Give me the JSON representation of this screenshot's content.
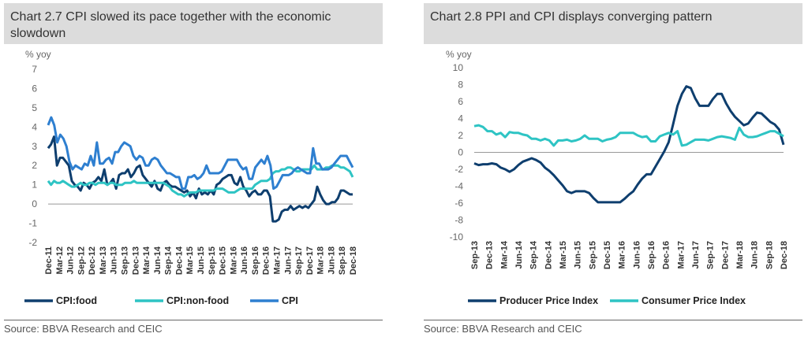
{
  "left": {
    "title": "Chart 2.7 CPI slowed its pace together with the economic slowdown",
    "source": "Source: BBVA Research and CEIC"
  },
  "right": {
    "title": "Chart 2.8 PPI and CPI displays converging pattern",
    "source": "Source: BBVA Research and CEIC"
  },
  "chart_data": [
    {
      "type": "line",
      "ylabel": "% yoy",
      "ylim": [
        -2,
        7
      ],
      "yticks": [
        -2,
        -1,
        0,
        1,
        2,
        3,
        4,
        5,
        6,
        7
      ],
      "grid": false,
      "legend_position": "bottom",
      "x_tick_labels": [
        "Dec-11",
        "Mar-12",
        "Jun-12",
        "Sep-12",
        "Dec-12",
        "Mar-13",
        "Jun-13",
        "Sep-13",
        "Dec-13",
        "Mar-14",
        "Jun-14",
        "Sep-14",
        "Dec-14",
        "Mar-15",
        "Jun-15",
        "Sep-15",
        "Dec-15",
        "Mar-16",
        "Jun-16",
        "Sep-16",
        "Dec-16",
        "Mar-17",
        "Jun-17",
        "Sep-17",
        "Dec-17",
        "Mar-18",
        "Jun-18",
        "Sep-18",
        "Dec-18"
      ],
      "series": [
        {
          "name": "CPI:food",
          "color": "#0e3e6e",
          "values": [
            2.9,
            3.1,
            3.5,
            2.0,
            2.4,
            2.4,
            2.2,
            2.0,
            1.2,
            1.0,
            0.9,
            0.7,
            1.1,
            1.0,
            0.8,
            1.1,
            1.2,
            1.4,
            1.2,
            1.8,
            1.0,
            1.1,
            1.3,
            0.8,
            1.5,
            1.6,
            1.6,
            1.8,
            1.4,
            1.6,
            1.9,
            2.0,
            1.5,
            1.3,
            1.1,
            0.9,
            1.2,
            0.8,
            0.7,
            1.1,
            1.2,
            1.0,
            0.9,
            0.9,
            0.8,
            0.7,
            0.6,
            0.7,
            0.4,
            0.6,
            0.3,
            0.8,
            0.5,
            0.6,
            0.5,
            0.7,
            0.5,
            1.0,
            1.1,
            1.3,
            1.4,
            1.5,
            1.5,
            1.1,
            1.0,
            1.4,
            0.9,
            0.7,
            0.4,
            0.6,
            0.7,
            0.5,
            0.5,
            0.7,
            0.7,
            0.4,
            -0.9,
            -0.9,
            -0.8,
            -0.4,
            -0.3,
            -0.3,
            -0.1,
            -0.3,
            -0.2,
            -0.1,
            -0.2,
            -0.1,
            -0.2,
            0.0,
            0.2,
            0.9,
            0.5,
            0.2,
            0.0,
            0.0,
            0.1,
            0.1,
            0.3,
            0.7,
            0.7,
            0.6,
            0.5,
            0.5
          ]
        },
        {
          "name": "CPI:non-food",
          "color": "#2ec4c4",
          "values": [
            1.2,
            1.0,
            1.2,
            1.1,
            1.1,
            1.2,
            1.1,
            1.0,
            0.9,
            0.9,
            1.0,
            1.1,
            1.0,
            1.0,
            1.1,
            1.1,
            1.0,
            1.1,
            1.1,
            1.1,
            1.0,
            1.1,
            1.1,
            1.0,
            1.0,
            1.0,
            1.1,
            1.1,
            1.1,
            1.2,
            1.1,
            1.1,
            1.1,
            1.1,
            1.1,
            1.1,
            1.1,
            1.1,
            1.1,
            1.1,
            1.0,
            0.9,
            0.7,
            0.6,
            0.5,
            0.5,
            0.4,
            0.5,
            0.6,
            0.6,
            0.6,
            0.7,
            0.7,
            0.7,
            0.7,
            0.7,
            0.7,
            0.8,
            0.8,
            0.8,
            0.7,
            0.6,
            0.6,
            0.6,
            0.7,
            0.8,
            0.8,
            0.8,
            0.8,
            0.8,
            1.0,
            1.1,
            1.2,
            1.2,
            1.2,
            1.3,
            1.6,
            1.7,
            1.7,
            1.8,
            1.8,
            1.9,
            1.9,
            1.8,
            1.7,
            1.7,
            1.8,
            1.8,
            1.8,
            1.8,
            2.0,
            1.8,
            1.8,
            1.8,
            1.9,
            1.9,
            2.0,
            2.0,
            2.0,
            1.9,
            1.9,
            1.8,
            1.7,
            1.4
          ]
        },
        {
          "name": "CPI",
          "color": "#2e7fd0",
          "values": [
            4.1,
            4.5,
            4.1,
            3.2,
            3.6,
            3.4,
            3.0,
            2.2,
            1.8,
            2.0,
            1.9,
            1.8,
            2.1,
            2.0,
            2.5,
            2.0,
            3.2,
            2.1,
            2.1,
            2.3,
            2.4,
            2.1,
            2.7,
            2.7,
            3.0,
            3.2,
            3.1,
            3.0,
            2.5,
            2.3,
            2.5,
            2.4,
            2.0,
            2.0,
            2.3,
            2.4,
            2.3,
            2.0,
            1.8,
            1.6,
            1.6,
            1.5,
            1.4,
            1.4,
            0.8,
            0.8,
            1.4,
            1.4,
            1.5,
            1.3,
            1.4,
            1.6,
            2.0,
            1.6,
            1.6,
            1.6,
            1.6,
            1.7,
            2.0,
            2.3,
            2.3,
            2.3,
            2.3,
            2.0,
            1.8,
            1.9,
            1.3,
            1.3,
            1.9,
            2.1,
            2.3,
            2.1,
            2.5,
            2.0,
            0.8,
            0.9,
            1.2,
            1.5,
            1.5,
            1.5,
            1.6,
            1.8,
            1.9,
            1.8,
            1.7,
            1.6,
            1.6,
            2.9,
            2.1,
            2.1,
            1.8,
            1.8,
            1.8,
            1.9,
            2.1,
            2.3,
            2.5,
            2.5,
            2.5,
            2.2,
            1.9
          ]
        }
      ]
    },
    {
      "type": "line",
      "ylabel": "% yoy",
      "ylim": [
        -10,
        10
      ],
      "yticks": [
        -10,
        -8,
        -6,
        -4,
        -2,
        0,
        2,
        4,
        6,
        8,
        10
      ],
      "grid": false,
      "legend_position": "bottom",
      "x_tick_labels": [
        "Sep-13",
        "Dec-13",
        "Mar-14",
        "Jun-14",
        "Sep-14",
        "Dec-14",
        "Mar-15",
        "Jun-15",
        "Sep-15",
        "Dec-15",
        "Mar-16",
        "Jun-16",
        "Sep-16",
        "Dec-16",
        "Mar-17",
        "Jun-17",
        "Sep-17",
        "Dec-17",
        "Mar-18",
        "Jun-18",
        "Sep-18",
        "Dec-18"
      ],
      "series": [
        {
          "name": "Producer Price Index",
          "color": "#0e3e6e",
          "values": [
            -1.3,
            -1.5,
            -1.4,
            -1.4,
            -1.3,
            -1.4,
            -1.8,
            -2.0,
            -2.3,
            -2.0,
            -1.5,
            -1.1,
            -0.9,
            -0.7,
            -0.9,
            -1.2,
            -1.8,
            -2.2,
            -2.7,
            -3.3,
            -3.9,
            -4.6,
            -4.8,
            -4.6,
            -4.6,
            -4.6,
            -4.8,
            -5.4,
            -5.9,
            -5.9,
            -5.9,
            -5.9,
            -5.9,
            -5.9,
            -5.5,
            -5.0,
            -4.6,
            -3.8,
            -3.1,
            -2.6,
            -2.6,
            -1.7,
            -0.8,
            0.1,
            1.2,
            3.3,
            5.5,
            6.9,
            7.8,
            7.6,
            6.4,
            5.5,
            5.5,
            5.5,
            6.3,
            6.9,
            6.9,
            5.8,
            4.9,
            4.2,
            3.7,
            3.2,
            3.4,
            4.1,
            4.7,
            4.6,
            4.1,
            3.6,
            3.3,
            2.7,
            0.9
          ]
        },
        {
          "name": "Consumer Price Index",
          "color": "#2ec4c4",
          "values": [
            3.1,
            3.2,
            3.0,
            2.5,
            2.5,
            2.1,
            2.3,
            1.8,
            2.4,
            2.3,
            2.3,
            2.1,
            2.0,
            1.6,
            1.6,
            1.4,
            1.6,
            1.4,
            0.8,
            1.4,
            1.4,
            1.5,
            1.3,
            1.4,
            1.6,
            2.0,
            1.6,
            1.6,
            1.6,
            1.3,
            1.5,
            1.6,
            1.8,
            2.3,
            2.3,
            2.3,
            2.3,
            2.0,
            1.8,
            1.9,
            1.3,
            1.3,
            1.9,
            2.1,
            2.3,
            2.1,
            2.5,
            0.8,
            0.9,
            1.2,
            1.5,
            1.5,
            1.5,
            1.4,
            1.6,
            1.8,
            1.9,
            1.8,
            1.7,
            1.5,
            2.9,
            2.1,
            1.8,
            1.8,
            1.9,
            2.1,
            2.3,
            2.5,
            2.5,
            2.2,
            1.9
          ]
        }
      ]
    }
  ]
}
